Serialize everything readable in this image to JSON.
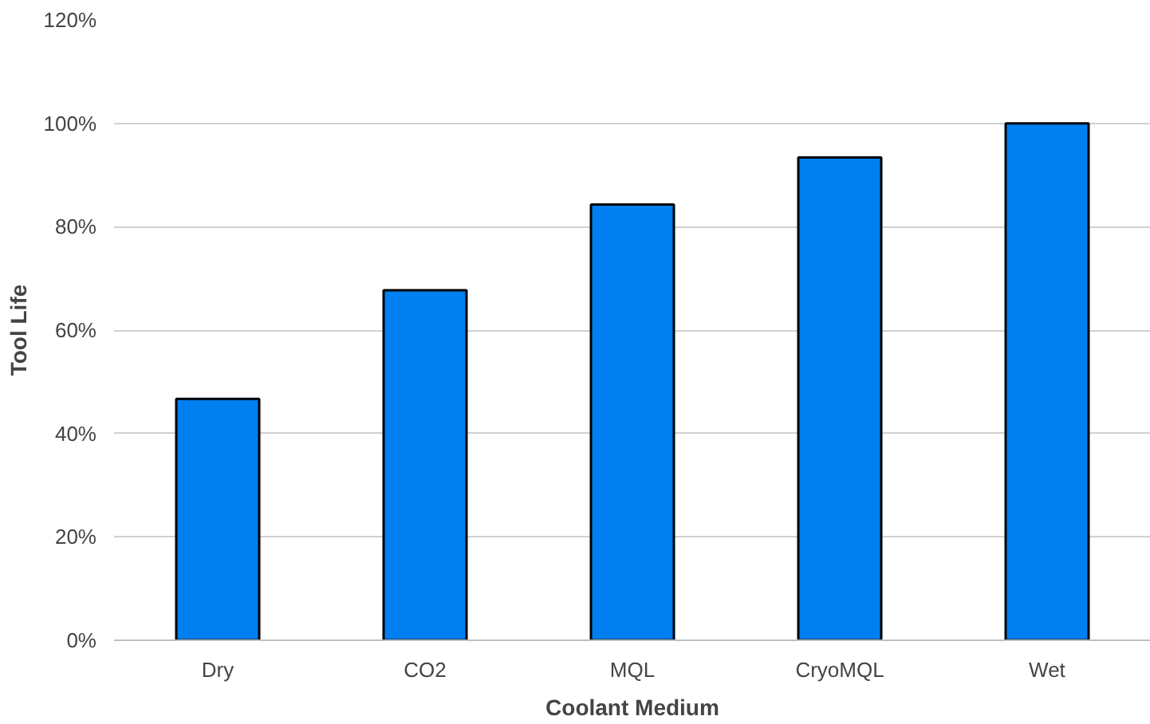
{
  "chart_data": {
    "type": "bar",
    "xlabel": "Coolant Medium",
    "ylabel": "Tool Life",
    "categories": [
      "Dry",
      "CO2",
      "MQL",
      "CryoMQL",
      "Wet"
    ],
    "values": [
      46.7,
      67.7,
      84.3,
      93.4,
      100
    ],
    "color": "#0080f0",
    "ylim": [
      0,
      120
    ],
    "yticks": [
      {
        "value": 0,
        "label": "0%"
      },
      {
        "value": 20,
        "label": "20%"
      },
      {
        "value": 40,
        "label": "40%"
      },
      {
        "value": 60,
        "label": "60%"
      },
      {
        "value": 80,
        "label": "80%"
      },
      {
        "value": 100,
        "label": "100%"
      },
      {
        "value": 120,
        "label": "120%"
      }
    ],
    "grid": "y"
  }
}
